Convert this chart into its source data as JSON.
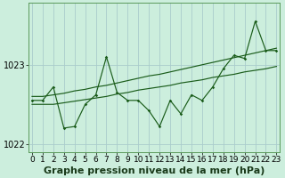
{
  "title": "Graphe pression niveau de la mer (hPa)",
  "bg_color": "#cceedd",
  "grid_color": "#aacccc",
  "line_color": "#1a5c1a",
  "x_labels": [
    "0",
    "1",
    "2",
    "3",
    "4",
    "5",
    "6",
    "7",
    "8",
    "9",
    "10",
    "11",
    "12",
    "13",
    "14",
    "15",
    "16",
    "17",
    "18",
    "19",
    "20",
    "21",
    "22",
    "23"
  ],
  "x_values": [
    0,
    1,
    2,
    3,
    4,
    5,
    6,
    7,
    8,
    9,
    10,
    11,
    12,
    13,
    14,
    15,
    16,
    17,
    18,
    19,
    20,
    21,
    22,
    23
  ],
  "y_main": [
    1022.55,
    1022.55,
    1022.72,
    1022.2,
    1022.22,
    1022.5,
    1022.62,
    1023.1,
    1022.65,
    1022.55,
    1022.55,
    1022.42,
    1022.22,
    1022.55,
    1022.38,
    1022.62,
    1022.55,
    1022.72,
    1022.95,
    1023.12,
    1023.08,
    1023.55,
    1023.18,
    1023.18
  ],
  "y_lower": [
    1022.5,
    1022.5,
    1022.5,
    1022.52,
    1022.54,
    1022.56,
    1022.58,
    1022.6,
    1022.63,
    1022.65,
    1022.68,
    1022.7,
    1022.72,
    1022.74,
    1022.77,
    1022.79,
    1022.81,
    1022.84,
    1022.86,
    1022.88,
    1022.91,
    1022.93,
    1022.95,
    1022.98
  ],
  "y_upper": [
    1022.6,
    1022.6,
    1022.62,
    1022.64,
    1022.67,
    1022.69,
    1022.72,
    1022.74,
    1022.77,
    1022.8,
    1022.83,
    1022.86,
    1022.88,
    1022.91,
    1022.94,
    1022.97,
    1023.0,
    1023.03,
    1023.06,
    1023.09,
    1023.12,
    1023.15,
    1023.18,
    1023.21
  ],
  "ylim_min": 1021.9,
  "ylim_max": 1023.78,
  "yticks": [
    1022.0,
    1023.0
  ],
  "tick_fontsize": 6.5,
  "title_fontsize": 8.0
}
